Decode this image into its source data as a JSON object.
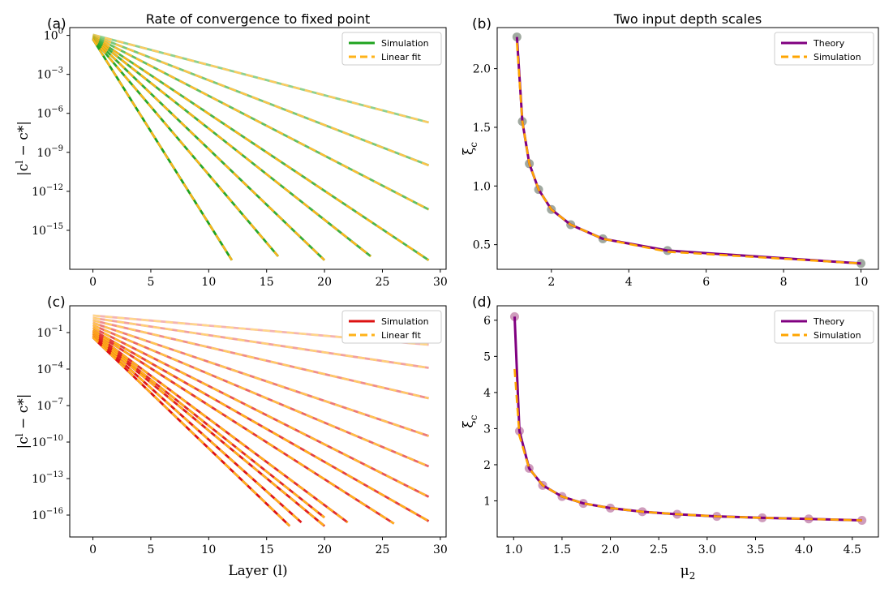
{
  "chart_data": [
    {
      "panel": "(a)",
      "type": "line",
      "title": "Rate of convergence to fixed point",
      "xlabel": "",
      "ylabel": "|c^l − c*|",
      "xlim": [
        -2,
        30.5
      ],
      "ylim_log10": [
        -18,
        0.6
      ],
      "y_scale": "log",
      "xticks": [
        "0",
        "5",
        "10",
        "15",
        "20",
        "25",
        "30"
      ],
      "yticks": [
        {
          "base": "10",
          "exp": "0",
          "value": 0
        },
        {
          "base": "10",
          "exp": "−3",
          "value": -3
        },
        {
          "base": "10",
          "exp": "−6",
          "value": -6
        },
        {
          "base": "10",
          "exp": "−9",
          "value": -9
        },
        {
          "base": "10",
          "exp": "−12",
          "value": -12
        },
        {
          "base": "10",
          "exp": "−15",
          "value": -15
        }
      ],
      "legend": {
        "position": "top-right",
        "entries": [
          {
            "label": "Simulation",
            "color": "#1fa31f",
            "style": "solid"
          },
          {
            "label": "Linear fit",
            "color": "#ffb31a",
            "style": "dashed"
          }
        ]
      },
      "sim_color": "#1fa31f",
      "fit_color": "#ffb31a",
      "series": [
        {
          "x0": 0,
          "x1": 12,
          "y0_log10": -0.3,
          "y1_log10": -17.3,
          "alpha": 1.0
        },
        {
          "x0": 0,
          "x1": 16,
          "y0_log10": -0.25,
          "y1_log10": -17.0,
          "alpha": 0.95
        },
        {
          "x0": 0,
          "x1": 20,
          "y0_log10": -0.2,
          "y1_log10": -17.3,
          "alpha": 0.9
        },
        {
          "x0": 0,
          "x1": 24,
          "y0_log10": -0.15,
          "y1_log10": -17.0,
          "alpha": 0.85
        },
        {
          "x0": 0,
          "x1": 29,
          "y0_log10": -0.1,
          "y1_log10": -17.3,
          "alpha": 0.8
        },
        {
          "x0": 0,
          "x1": 29,
          "y0_log10": -0.05,
          "y1_log10": -13.4,
          "alpha": 0.7
        },
        {
          "x0": 0,
          "x1": 29,
          "y0_log10": 0.0,
          "y1_log10": -10.0,
          "alpha": 0.6
        },
        {
          "x0": 0,
          "x1": 29,
          "y0_log10": 0.05,
          "y1_log10": -6.7,
          "alpha": 0.5
        }
      ]
    },
    {
      "panel": "(b)",
      "type": "line",
      "title": "Two input depth scales",
      "xlabel": "",
      "ylabel": "ξ_c",
      "xlim": [
        0.6,
        10.45
      ],
      "ylim": [
        0.29,
        2.35
      ],
      "xticks": [
        "2",
        "4",
        "6",
        "8",
        "10"
      ],
      "yticks": [
        "0.5",
        "1.0",
        "1.5",
        "2.0"
      ],
      "legend": {
        "position": "top-right",
        "entries": [
          {
            "label": "Theory",
            "color": "#800080",
            "style": "solid"
          },
          {
            "label": "Simulation",
            "color": "#ffa500",
            "style": "dashed"
          }
        ]
      },
      "x": [
        1.11,
        1.25,
        1.43,
        1.67,
        2.0,
        2.5,
        3.33,
        5.0,
        10.0
      ],
      "series": [
        {
          "name": "Theory",
          "values": [
            2.27,
            1.55,
            1.19,
            0.97,
            0.8,
            0.67,
            0.55,
            0.45,
            0.34
          ]
        },
        {
          "name": "Simulation",
          "values": [
            2.22,
            1.55,
            1.19,
            0.97,
            0.8,
            0.67,
            0.55,
            0.44,
            0.34
          ]
        }
      ]
    },
    {
      "panel": "(c)",
      "type": "line",
      "title": "",
      "xlabel": "Layer (l)",
      "ylabel": "|c^l − c*|",
      "xlim": [
        -2,
        30.5
      ],
      "ylim_log10": [
        -17.8,
        1.2
      ],
      "y_scale": "log",
      "xticks": [
        "0",
        "5",
        "10",
        "15",
        "20",
        "25",
        "30"
      ],
      "yticks": [
        {
          "base": "10",
          "exp": "−1",
          "value": -1
        },
        {
          "base": "10",
          "exp": "−4",
          "value": -4
        },
        {
          "base": "10",
          "exp": "−7",
          "value": -7
        },
        {
          "base": "10",
          "exp": "−10",
          "value": -10
        },
        {
          "base": "10",
          "exp": "−13",
          "value": -13
        },
        {
          "base": "10",
          "exp": "−16",
          "value": -16
        }
      ],
      "legend": {
        "position": "top-right",
        "entries": [
          {
            "label": "Simulation",
            "color": "#dd1111",
            "style": "solid"
          },
          {
            "label": "Linear fit",
            "color": "#ffb31a",
            "style": "dashed"
          }
        ]
      },
      "sim_color": "#dd1111",
      "fit_color": "#ffb31a",
      "series": [
        {
          "x0": 0,
          "x1": 17,
          "y0_log10": -1.4,
          "y1_log10": -16.9,
          "alpha": 1.0
        },
        {
          "x0": 0,
          "x1": 18,
          "y0_log10": -1.3,
          "y1_log10": -16.6,
          "alpha": 0.97
        },
        {
          "x0": 0,
          "x1": 20,
          "y0_log10": -1.2,
          "y1_log10": -16.9,
          "alpha": 0.94
        },
        {
          "x0": 0,
          "x1": 20,
          "y0_log10": -1.1,
          "y1_log10": -16.2,
          "alpha": 0.91
        },
        {
          "x0": 0,
          "x1": 22,
          "y0_log10": -1.0,
          "y1_log10": -16.6,
          "alpha": 0.88
        },
        {
          "x0": 0,
          "x1": 26,
          "y0_log10": -0.9,
          "y1_log10": -16.7,
          "alpha": 0.84
        },
        {
          "x0": 0,
          "x1": 29,
          "y0_log10": -0.8,
          "y1_log10": -16.5,
          "alpha": 0.8
        },
        {
          "x0": 0,
          "x1": 29,
          "y0_log10": -0.6,
          "y1_log10": -14.5,
          "alpha": 0.72
        },
        {
          "x0": 0,
          "x1": 29,
          "y0_log10": -0.4,
          "y1_log10": -12.0,
          "alpha": 0.64
        },
        {
          "x0": 0,
          "x1": 29,
          "y0_log10": -0.2,
          "y1_log10": -9.5,
          "alpha": 0.56
        },
        {
          "x0": 0,
          "x1": 29,
          "y0_log10": 0.0,
          "y1_log10": -6.4,
          "alpha": 0.48
        },
        {
          "x0": 0,
          "x1": 29,
          "y0_log10": 0.2,
          "y1_log10": -3.9,
          "alpha": 0.4
        },
        {
          "x0": 0,
          "x1": 29,
          "y0_log10": 0.4,
          "y1_log10": -2.0,
          "alpha": 0.32
        }
      ]
    },
    {
      "panel": "(d)",
      "type": "line",
      "title": "",
      "xlabel": "μ2",
      "ylabel": "ξ_c",
      "xlim": [
        0.83,
        4.77
      ],
      "ylim": [
        0.0,
        6.4
      ],
      "xticks": [
        "1.0",
        "1.5",
        "2.0",
        "2.5",
        "3.0",
        "3.5",
        "4.0",
        "4.5"
      ],
      "yticks": [
        "1",
        "2",
        "3",
        "4",
        "5",
        "6"
      ],
      "legend": {
        "position": "top-right",
        "entries": [
          {
            "label": "Theory",
            "color": "#800080",
            "style": "solid"
          },
          {
            "label": "Simulation",
            "color": "#ffa500",
            "style": "dashed"
          }
        ]
      },
      "x": [
        1.01,
        1.06,
        1.16,
        1.3,
        1.5,
        1.72,
        2.0,
        2.33,
        2.69,
        3.1,
        3.57,
        4.05,
        4.6
      ],
      "series": [
        {
          "name": "Theory",
          "values": [
            6.1,
            2.93,
            1.9,
            1.43,
            1.12,
            0.93,
            0.8,
            0.7,
            0.63,
            0.57,
            0.53,
            0.5,
            0.46
          ]
        },
        {
          "name": "Simulation",
          "values": [
            4.65,
            2.8,
            1.9,
            1.43,
            1.12,
            0.93,
            0.8,
            0.7,
            0.63,
            0.57,
            0.53,
            0.5,
            0.46
          ]
        }
      ]
    }
  ],
  "panel_labels": [
    "(a)",
    "(b)",
    "(c)",
    "(d)"
  ],
  "colors": {
    "theory": "#800080",
    "simulation_fit": "#ffa500",
    "marker": "#999999"
  }
}
